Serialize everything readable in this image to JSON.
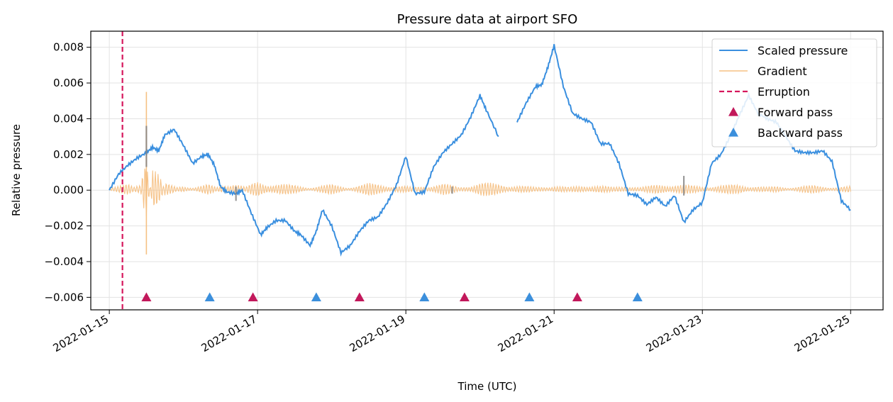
{
  "chart_data": {
    "type": "line",
    "title": "Pressure data at airport SFO",
    "xlabel": "Time (UTC)",
    "ylabel": "Relative pressure",
    "xlim": [
      "2022-01-14T18:00",
      "2022-01-25T10:30"
    ],
    "ylim": [
      -0.0067,
      0.0089
    ],
    "x_ticks": [
      "2022-01-15",
      "2022-01-17",
      "2022-01-19",
      "2022-01-21",
      "2022-01-23",
      "2022-01-25"
    ],
    "y_ticks": [
      -0.006,
      -0.004,
      -0.002,
      0.0,
      0.002,
      0.004,
      0.006,
      0.008
    ],
    "y_tick_labels": [
      "−0.006",
      "−0.004",
      "−0.002",
      "0.000",
      "0.002",
      "0.004",
      "0.006",
      "0.008"
    ],
    "grid": true,
    "legend_position": "top-right",
    "colors": {
      "scaled_pressure": "#3a8fdf",
      "gradient": "#f5c083",
      "eruption": "#d6165c",
      "forward": "#c2185b",
      "backward": "#3b8fdc",
      "gray_segments": "#808080"
    },
    "series": [
      {
        "name": "Scaled pressure",
        "style": "solid",
        "x": [
          "2022-01-15T00:00",
          "2022-01-15T03:00",
          "2022-01-15T06:00",
          "2022-01-15T09:00",
          "2022-01-15T12:00",
          "2022-01-15T14:00",
          "2022-01-15T16:00",
          "2022-01-15T18:00",
          "2022-01-15T21:00",
          "2022-01-16T00:00",
          "2022-01-16T03:00",
          "2022-01-16T06:00",
          "2022-01-16T08:00",
          "2022-01-16T10:00",
          "2022-01-16T12:00",
          "2022-01-16T14:00",
          "2022-01-16T17:00",
          "2022-01-16T19:00",
          "2022-01-16T22:00",
          "2022-01-17T01:00",
          "2022-01-17T03:00",
          "2022-01-17T06:00",
          "2022-01-17T09:00",
          "2022-01-17T12:00",
          "2022-01-17T14:00",
          "2022-01-17T17:00",
          "2022-01-17T19:00",
          "2022-01-17T21:00",
          "2022-01-18T00:00",
          "2022-01-18T03:00",
          "2022-01-18T06:00",
          "2022-01-18T09:00",
          "2022-01-18T12:00",
          "2022-01-18T15:00",
          "2022-01-18T18:00",
          "2022-01-18T21:00",
          "2022-01-19T00:00",
          "2022-01-19T03:00",
          "2022-01-19T06:00",
          "2022-01-19T09:00",
          "2022-01-19T12:00",
          "2022-01-19T15:00",
          "2022-01-19T18:00",
          "2022-01-19T21:00",
          "2022-01-20T00:00",
          "2022-01-20T02:00",
          "2022-01-20T06:00",
          "2022-01-20T09:00",
          "2022-01-20T12:00",
          "2022-01-20T15:00",
          "2022-01-20T18:00",
          "2022-01-20T20:00",
          "2022-01-20T22:00",
          "2022-01-21T00:00",
          "2022-01-21T03:00",
          "2022-01-21T06:00",
          "2022-01-21T09:00",
          "2022-01-21T12:00",
          "2022-01-21T15:00",
          "2022-01-21T18:00",
          "2022-01-21T21:00",
          "2022-01-22T00:00",
          "2022-01-22T03:00",
          "2022-01-22T06:00",
          "2022-01-22T09:00",
          "2022-01-22T12:00",
          "2022-01-22T15:00",
          "2022-01-22T18:00",
          "2022-01-22T21:00",
          "2022-01-23T00:00",
          "2022-01-23T03:00",
          "2022-01-23T06:00",
          "2022-01-23T09:00",
          "2022-01-23T12:00",
          "2022-01-23T15:00",
          "2022-01-23T18:00",
          "2022-01-23T21:00",
          "2022-01-24T00:00",
          "2022-01-24T03:00",
          "2022-01-24T06:00",
          "2022-01-24T09:00",
          "2022-01-24T12:00",
          "2022-01-24T15:00",
          "2022-01-24T18:00",
          "2022-01-24T21:00",
          "2022-01-25T00:00"
        ],
        "y": [
          0.0,
          0.0009,
          0.0014,
          0.0018,
          0.0021,
          0.0024,
          0.0022,
          0.0031,
          0.0034,
          0.0025,
          0.0015,
          0.0019,
          0.002,
          0.0014,
          0.0002,
          -0.0001,
          -0.0002,
          0.0,
          -0.0013,
          -0.0025,
          -0.0021,
          -0.0017,
          -0.0017,
          -0.0023,
          -0.0025,
          -0.0031,
          -0.0023,
          -0.0011,
          -0.002,
          -0.0035,
          -0.0031,
          -0.0023,
          -0.0017,
          -0.0015,
          -0.0007,
          0.0003,
          0.0019,
          -0.0002,
          -0.0001,
          0.0013,
          0.0021,
          0.0026,
          0.0031,
          0.0041,
          0.0053,
          0.0045,
          0.003,
          null,
          0.0038,
          0.0049,
          0.0058,
          0.0059,
          0.0069,
          0.0081,
          0.0058,
          0.0043,
          0.004,
          0.0038,
          0.0026,
          0.0026,
          0.0015,
          -0.0002,
          -0.0003,
          -0.0008,
          -0.0004,
          -0.0009,
          -0.0003,
          -0.0018,
          -0.0011,
          -0.0007,
          0.0015,
          0.002,
          0.003,
          0.0042,
          0.0053,
          0.0043,
          0.004,
          0.0038,
          0.003,
          0.0022,
          0.0021,
          0.0021,
          0.0022,
          0.0016,
          -0.0006,
          -0.0011
        ]
      },
      {
        "name": "Gradient",
        "style": "solid",
        "x": [
          "2022-01-15T00:00",
          "2022-01-15T06:00",
          "2022-01-15T10:00",
          "2022-01-15T12:00",
          "2022-01-15T14:00",
          "2022-01-15T18:00",
          "2022-01-16T00:00",
          "2022-01-16T08:00",
          "2022-01-16T16:00",
          "2022-01-17T00:00",
          "2022-01-17T12:00",
          "2022-01-18T00:00",
          "2022-01-18T12:00",
          "2022-01-19T00:00",
          "2022-01-19T12:00",
          "2022-01-20T00:00",
          "2022-01-20T12:00",
          "2022-01-21T00:00",
          "2022-01-21T12:00",
          "2022-01-22T00:00",
          "2022-01-22T12:00",
          "2022-01-23T00:00",
          "2022-01-23T12:00",
          "2022-01-24T00:00",
          "2022-01-24T12:00",
          "2022-01-25T00:00"
        ],
        "y": [
          0.0001,
          0.0003,
          -0.0003,
          0.0055,
          -0.0036,
          0.0004,
          -0.0002,
          0.0003,
          -0.0006,
          0.0006,
          0.0002,
          -0.0003,
          0.0004,
          0.0001,
          -0.0004,
          0.0005,
          0.0002,
          -0.0002,
          0.0003,
          -0.0002,
          0.0004,
          0.0001,
          0.0003,
          -0.0001,
          0.0002,
          -0.0001
        ]
      },
      {
        "name": "Erruption",
        "style": "dashed",
        "x": [
          "2022-01-15T04:15"
        ]
      },
      {
        "name": "Forward pass",
        "style": "marker-triangle",
        "x": [
          "2022-01-15T12:00",
          "2022-01-16T22:30",
          "2022-01-18T09:00",
          "2022-01-19T19:00",
          "2022-01-21T07:30"
        ],
        "y": [
          -0.006,
          -0.006,
          -0.006,
          -0.006,
          -0.006
        ]
      },
      {
        "name": "Backward pass",
        "style": "marker-triangle",
        "x": [
          "2022-01-16T08:30",
          "2022-01-17T19:00",
          "2022-01-19T06:00",
          "2022-01-20T16:00",
          "2022-01-22T03:00"
        ],
        "y": [
          -0.006,
          -0.006,
          -0.006,
          -0.006,
          -0.006
        ]
      }
    ]
  }
}
